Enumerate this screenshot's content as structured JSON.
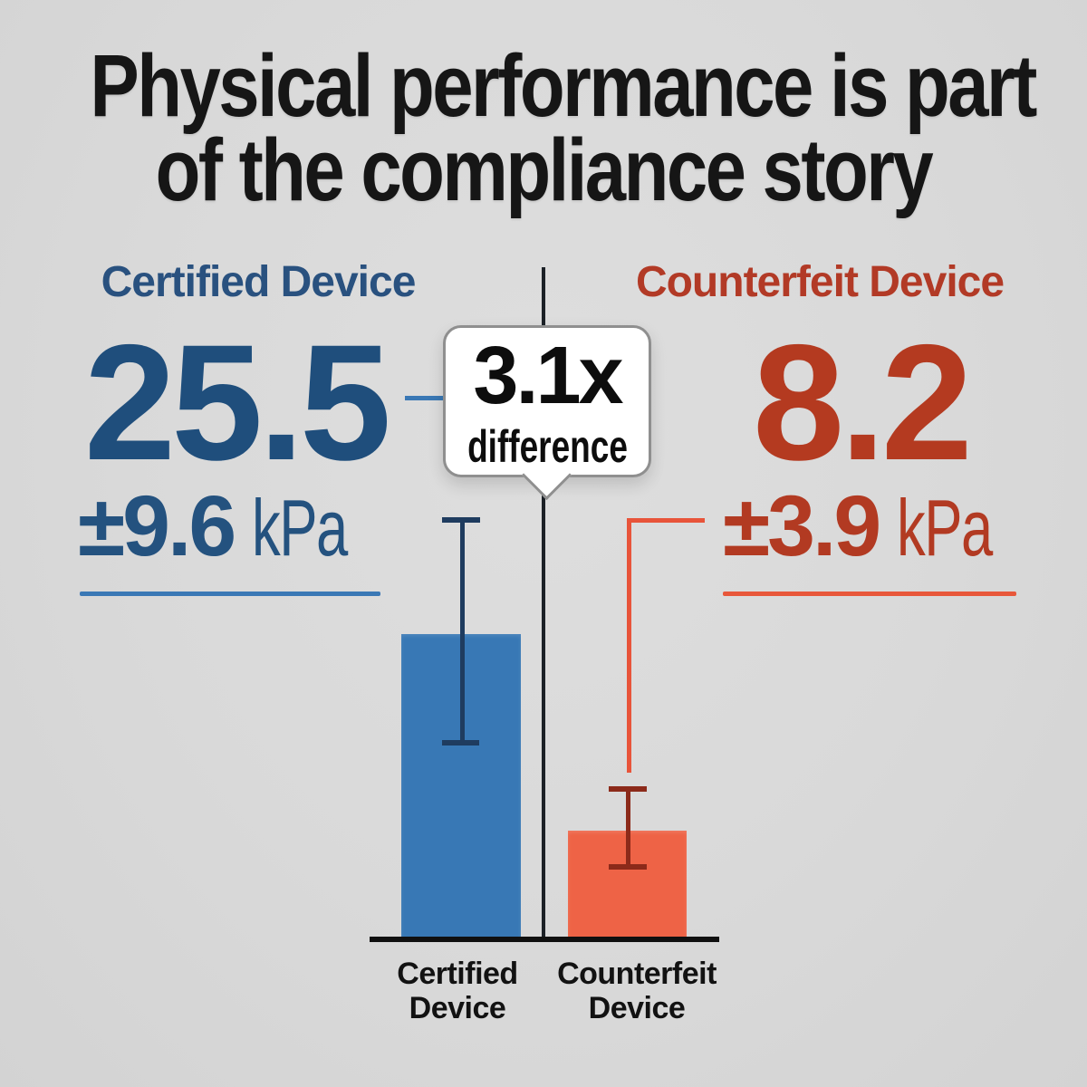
{
  "title": {
    "line1": "Physical performance is part",
    "line2": "of the compliance story"
  },
  "left_panel": {
    "header": "Certified Device",
    "value": "25.5",
    "tolerance": "±9.6",
    "unit": "kPa"
  },
  "right_panel": {
    "header": "Counterfeit Device",
    "value": "8.2",
    "tolerance": "±3.9",
    "unit": "kPa"
  },
  "callout": {
    "multiplier": "3.1x",
    "caption": "difference"
  },
  "chart_data": {
    "type": "bar",
    "categories": [
      "Certified Device",
      "Counterfeit Device"
    ],
    "values": [
      25.5,
      8.2
    ],
    "errors": [
      9.6,
      3.9
    ],
    "unit": "kPa",
    "annotation": "3.1x difference",
    "ylabel": "",
    "xlabel": "",
    "ylim": [
      0,
      36
    ],
    "grid": false,
    "legend_position": "none",
    "series_colors": [
      "#3878b5",
      "#ee6346"
    ],
    "error_bar_colors": [
      "#1f3c5f",
      "#8c2a1a"
    ],
    "x_tick_labels": [
      [
        "Certified",
        "Device"
      ],
      [
        "Counterfeit",
        "Device"
      ]
    ]
  },
  "colors": {
    "background": "#d9d9d9",
    "title_text": "#161616",
    "certified_text": "#24527f",
    "certified_accent": "#3a78b5",
    "counterfeit_text": "#b23a22",
    "counterfeit_accent": "#e8573a",
    "divider": "#1c2127",
    "callout_border": "#8f8f8f",
    "callout_bg": "#ffffff"
  }
}
